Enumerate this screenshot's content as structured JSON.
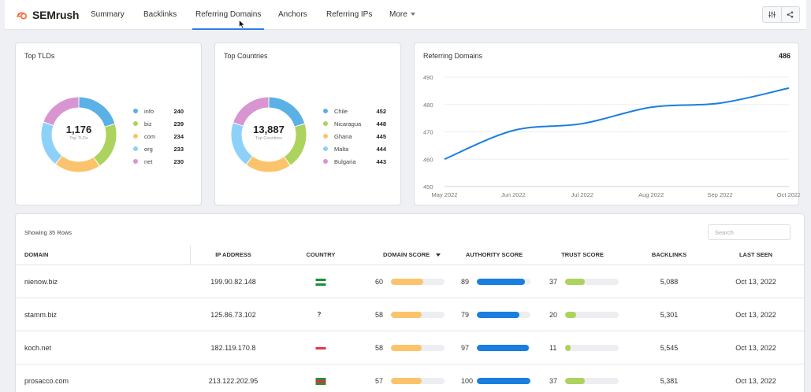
{
  "nav": {
    "logo_text": "SEMrush",
    "tabs": [
      {
        "label": "Summary"
      },
      {
        "label": "Backlinks"
      },
      {
        "label": "Referring Domains"
      },
      {
        "label": "Anchors"
      },
      {
        "label": "Referring IPs"
      },
      {
        "label": "More"
      }
    ],
    "active_tab": "Referring Domains"
  },
  "top_tlds": {
    "title": "Top TLDs",
    "total": "1,176",
    "subtitle": "Top TLDs",
    "items": [
      {
        "label": "info",
        "value": "240",
        "color": "#5bb0e6"
      },
      {
        "label": "biz",
        "value": "239",
        "color": "#acd35d"
      },
      {
        "label": "com",
        "value": "234",
        "color": "#fbc46c"
      },
      {
        "label": "org",
        "value": "233",
        "color": "#8dd1f9"
      },
      {
        "label": "net",
        "value": "230",
        "color": "#d995d2"
      }
    ]
  },
  "top_countries": {
    "title": "Top Countries",
    "total": "13,887",
    "subtitle": "Top Countries",
    "items": [
      {
        "label": "Chile",
        "value": "452",
        "color": "#5bb0e6"
      },
      {
        "label": "Nicaragua",
        "value": "448",
        "color": "#acd35d"
      },
      {
        "label": "Ghana",
        "value": "445",
        "color": "#fbc46c"
      },
      {
        "label": "Malta",
        "value": "444",
        "color": "#8dd1f9"
      },
      {
        "label": "Bulgaria",
        "value": "443",
        "color": "#d995d2"
      }
    ]
  },
  "chart_data": {
    "type": "line",
    "title": "Referring Domains",
    "headline_value": "486",
    "x": [
      "May 2022",
      "Jun 2022",
      "Jul 2022",
      "Aug 2022",
      "Sep 2022",
      "Oct 2022"
    ],
    "series": [
      {
        "values": [
          460,
          470.5,
          473,
          479,
          480.5,
          486
        ],
        "color": "#1a7ee0"
      }
    ],
    "ylim": [
      450,
      490
    ],
    "yticks": [
      450,
      460,
      470,
      480,
      490
    ],
    "grid": true
  },
  "table": {
    "rows_label": "Showing 35 Rows",
    "search_placeholder": "Search",
    "columns": {
      "domain": "DOMAIN",
      "ip": "IP ADDRESS",
      "country": "COUNTRY",
      "domain_score": "DOMAIN SCORE",
      "authority_score": "AUTHORITY SCORE",
      "trust_score": "TRUST SCORE",
      "backlinks": "BACKLINKS",
      "last_seen": "LAST SEEN"
    },
    "rows": [
      {
        "domain": "nienow.biz",
        "ip": "199.90.82.148",
        "country": "flag",
        "flag": [
          "#1d8f3a",
          "#ffffff",
          "#1d8f3a"
        ],
        "domain_score": "60",
        "authority_score": "89",
        "trust_score": "37",
        "backlinks": "5,088",
        "last_seen": "Oct 13, 2022"
      },
      {
        "domain": "stamm.biz",
        "ip": "125.86.73.102",
        "country": "?",
        "flag": [],
        "domain_score": "58",
        "authority_score": "79",
        "trust_score": "20",
        "backlinks": "5,301",
        "last_seen": "Oct 13, 2022"
      },
      {
        "domain": "koch.net",
        "ip": "182.119.170.8",
        "country": "flag",
        "flag": [
          "#ffffff",
          "#e03845",
          "#ffffff"
        ],
        "domain_score": "58",
        "authority_score": "97",
        "trust_score": "11",
        "backlinks": "5,545",
        "last_seen": "Oct 13, 2022"
      },
      {
        "domain": "prosacco.com",
        "ip": "213.122.202.95",
        "country": "flag",
        "flag": [
          "#2e8b3d",
          "#d9343b",
          "#2e8b3d"
        ],
        "domain_score": "57",
        "authority_score": "100",
        "trust_score": "37",
        "backlinks": "5,381",
        "last_seen": "Oct 13, 2022"
      }
    ]
  },
  "colors": {
    "domain_score": "#fbc46c",
    "authority_score": "#1a7ee0",
    "trust_score": "#acd35d",
    "accent": "#2b7de9"
  }
}
